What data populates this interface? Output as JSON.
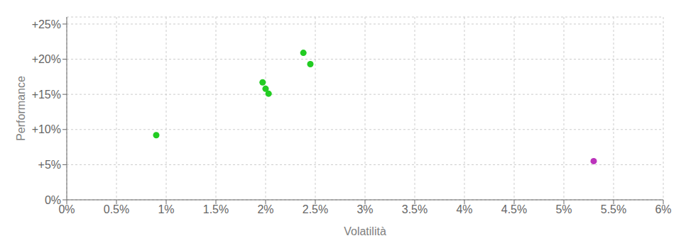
{
  "chart_data": {
    "type": "scatter",
    "xlabel": "Volatilità",
    "ylabel": "Performance",
    "xlim": [
      0.0,
      0.06
    ],
    "ylim": [
      0.0,
      0.26
    ],
    "xticks": [
      {
        "value": 0.0,
        "label": "0%"
      },
      {
        "value": 0.005,
        "label": "0.5%"
      },
      {
        "value": 0.01,
        "label": "1%"
      },
      {
        "value": 0.015,
        "label": "1.5%"
      },
      {
        "value": 0.02,
        "label": "2%"
      },
      {
        "value": 0.025,
        "label": "2.5%"
      },
      {
        "value": 0.03,
        "label": "3%"
      },
      {
        "value": 0.035,
        "label": "3.5%"
      },
      {
        "value": 0.04,
        "label": "4%"
      },
      {
        "value": 0.045,
        "label": "4.5%"
      },
      {
        "value": 0.05,
        "label": "5%"
      },
      {
        "value": 0.055,
        "label": "5.5%"
      },
      {
        "value": 0.06,
        "label": "6%"
      }
    ],
    "yticks": [
      {
        "value": 0.0,
        "label": "0%"
      },
      {
        "value": 0.05,
        "label": "+5%"
      },
      {
        "value": 0.1,
        "label": "+10%"
      },
      {
        "value": 0.15,
        "label": "+15%"
      },
      {
        "value": 0.2,
        "label": "+20%"
      },
      {
        "value": 0.25,
        "label": "+25%"
      }
    ],
    "grid": true,
    "series": [
      {
        "color": "#22cc22",
        "x": [
          0.009,
          0.0197,
          0.02,
          0.0203,
          0.0238,
          0.0245
        ],
        "values": [
          0.092,
          0.167,
          0.158,
          0.151,
          0.209,
          0.193
        ]
      },
      {
        "color": "#bb33bb",
        "x": [
          0.053
        ],
        "values": [
          0.055
        ]
      }
    ]
  }
}
